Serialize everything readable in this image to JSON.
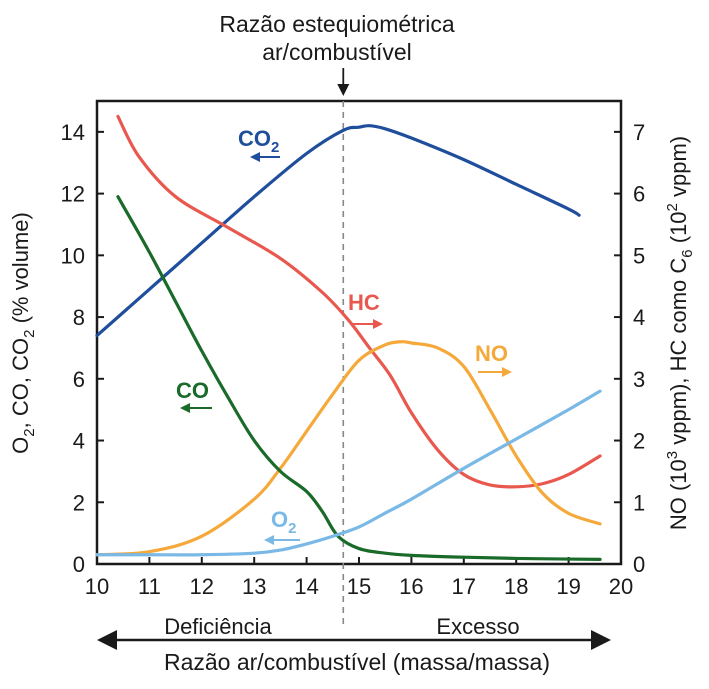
{
  "chart_data": {
    "type": "line",
    "annotation": {
      "line1": "Razão estequiométrica",
      "line2": "ar/combustível",
      "x": 14.7
    },
    "xlabel": "Razão ar/combustível (massa/massa)",
    "xlim": [
      10,
      20
    ],
    "xticks": [
      "10",
      "11",
      "12",
      "13",
      "14",
      "15",
      "16",
      "17",
      "18",
      "19",
      "20"
    ],
    "ylabel_left": {
      "parts": [
        "O",
        "2",
        ", CO, CO",
        "2",
        " (% volume)"
      ]
    },
    "ylim_left": [
      0,
      15
    ],
    "yticks_left": [
      "0",
      "2",
      "4",
      "6",
      "8",
      "10",
      "12",
      "14"
    ],
    "ylabel_right": {
      "parts": [
        "NO (10",
        "3",
        " vppm), HC como C",
        "6",
        " (10",
        "2",
        " vppm)"
      ]
    },
    "ylim_right": [
      0,
      7.5
    ],
    "yticks_right": [
      "0",
      "1",
      "2",
      "3",
      "4",
      "5",
      "6",
      "7"
    ],
    "regions": {
      "left": "Deficiência",
      "right": "Excesso"
    },
    "series": [
      {
        "key": "co2",
        "label": "CO",
        "sub": "2",
        "axis": "left",
        "color": "#1f4e9c",
        "x": [
          10,
          11,
          12,
          13,
          14,
          14.7,
          15,
          15.2,
          15.5,
          16,
          17,
          18,
          19,
          19.2
        ],
        "y": [
          7.4,
          8.9,
          10.4,
          11.9,
          13.3,
          14.05,
          14.15,
          14.2,
          14.1,
          13.8,
          13.1,
          12.3,
          11.5,
          11.3
        ]
      },
      {
        "key": "hc",
        "label": "HC",
        "axis": "right",
        "color": "#e8584f",
        "x": [
          10.4,
          10.8,
          11.5,
          12.5,
          13.5,
          14.3,
          14.8,
          15.2,
          15.6,
          16,
          16.5,
          17,
          17.5,
          18,
          18.5,
          19,
          19.6
        ],
        "y": [
          7.25,
          6.6,
          5.95,
          5.45,
          4.95,
          4.4,
          3.95,
          3.5,
          3.05,
          2.45,
          1.85,
          1.45,
          1.28,
          1.25,
          1.3,
          1.45,
          1.75
        ]
      },
      {
        "key": "no",
        "label": "NO",
        "axis": "right",
        "color": "#f5a93b",
        "x": [
          10,
          11,
          12,
          13,
          13.5,
          14,
          14.5,
          15,
          15.5,
          15.8,
          16,
          16.5,
          17,
          17.5,
          18,
          18.5,
          19,
          19.6
        ],
        "y": [
          0.15,
          0.2,
          0.45,
          1.05,
          1.55,
          2.15,
          2.75,
          3.3,
          3.55,
          3.6,
          3.58,
          3.5,
          3.2,
          2.5,
          1.75,
          1.15,
          0.82,
          0.65
        ]
      },
      {
        "key": "co",
        "label": "CO",
        "axis": "left",
        "color": "#1a6b2a",
        "x": [
          10.4,
          11,
          11.5,
          12,
          12.5,
          13,
          13.5,
          14,
          14.3,
          14.6,
          15,
          15.5,
          16,
          17,
          18,
          19,
          19.6
        ],
        "y": [
          11.9,
          10.1,
          8.5,
          6.9,
          5.4,
          4.0,
          3.0,
          2.35,
          1.7,
          0.9,
          0.5,
          0.35,
          0.28,
          0.22,
          0.18,
          0.16,
          0.15
        ]
      },
      {
        "key": "o2",
        "label": "O",
        "sub": "2",
        "axis": "left",
        "color": "#7ab8e6",
        "x": [
          10,
          11,
          12,
          13,
          13.5,
          14,
          14.5,
          15,
          15.5,
          16,
          17,
          18,
          19,
          19.6
        ],
        "y": [
          0.3,
          0.3,
          0.3,
          0.35,
          0.45,
          0.65,
          0.9,
          1.2,
          1.65,
          2.1,
          3.1,
          4.05,
          5.0,
          5.6
        ]
      }
    ]
  }
}
